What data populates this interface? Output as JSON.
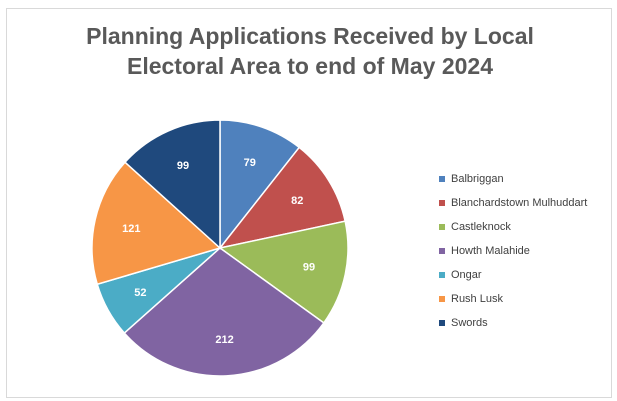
{
  "chart_data": {
    "type": "pie",
    "title": "Planning Applications Received by Local Electoral Area to end of May 2024",
    "title_lines": [
      "Planning Applications Received by Local",
      "Electoral Area to end of May 2024"
    ],
    "categories": [
      "Balbriggan",
      "Blanchardstown Mulhuddart",
      "Castleknock",
      "Howth Malahide",
      "Ongar",
      "Rush Lusk",
      "Swords"
    ],
    "values": [
      79,
      82,
      99,
      212,
      52,
      121,
      99
    ],
    "labels": [
      "79",
      "82",
      "99",
      "212",
      "52",
      "121",
      "99"
    ],
    "colors": [
      "#4f81bd",
      "#c0504d",
      "#9bbb59",
      "#8064a2",
      "#4bacc6",
      "#f79646",
      "#1f497d"
    ],
    "legend_position": "right"
  }
}
